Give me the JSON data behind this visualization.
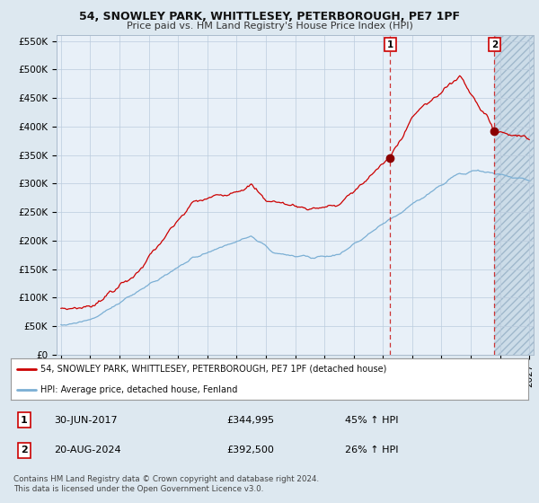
{
  "title": "54, SNOWLEY PARK, WHITTLESEY, PETERBOROUGH, PE7 1PF",
  "subtitle": "Price paid vs. HM Land Registry's House Price Index (HPI)",
  "legend_line1": "54, SNOWLEY PARK, WHITTLESEY, PETERBOROUGH, PE7 1PF (detached house)",
  "legend_line2": "HPI: Average price, detached house, Fenland",
  "purchase1_label": "1",
  "purchase1_date": "30-JUN-2017",
  "purchase1_price": "£344,995",
  "purchase1_hpi": "45% ↑ HPI",
  "purchase2_label": "2",
  "purchase2_date": "20-AUG-2024",
  "purchase2_price": "£392,500",
  "purchase2_hpi": "26% ↑ HPI",
  "footer": "Contains HM Land Registry data © Crown copyright and database right 2024.\nThis data is licensed under the Open Government Licence v3.0.",
  "hpi_color": "#7bafd4",
  "price_color": "#cc0000",
  "marker_color": "#8b0000",
  "vline_color": "#cc3333",
  "background_color": "#dde8f0",
  "plot_bg_color": "#e8f0f8",
  "hatch_color": "#c0d4e8",
  "ylim": [
    0,
    560000
  ],
  "yticks": [
    0,
    50000,
    100000,
    150000,
    200000,
    250000,
    300000,
    350000,
    400000,
    450000,
    500000,
    550000
  ],
  "year_start": 1995,
  "year_end": 2027,
  "purchase1_year": 2017.5,
  "purchase2_year": 2024.62
}
